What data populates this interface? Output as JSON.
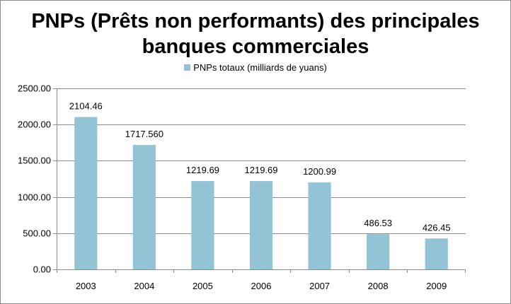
{
  "chart_data": {
    "type": "bar",
    "title_lines": [
      "PNPs (Prêts non performants) des principales",
      "banques commerciales"
    ],
    "legend": {
      "label": "PNPs totaux (milliards de yuans)",
      "position": "top"
    },
    "categories": [
      "2003",
      "2004",
      "2005",
      "2006",
      "2007",
      "2008",
      "2009"
    ],
    "values": [
      2104.46,
      1717.56,
      1219.69,
      1219.69,
      1200.99,
      486.53,
      426.45
    ],
    "data_labels": [
      "2104.46",
      "1717.560",
      "1219.69",
      "1219.69",
      "1200.99",
      "486.53",
      "426.45"
    ],
    "y_ticks": [
      "0.00",
      "500.00",
      "1000.00",
      "1500.00",
      "2000.00",
      "2500.00"
    ],
    "ylim": [
      0,
      2500
    ],
    "grid": true,
    "xlabel": "",
    "ylabel": "",
    "bar_color": "#93c4d6",
    "grid_color": "#8c8c8c"
  }
}
